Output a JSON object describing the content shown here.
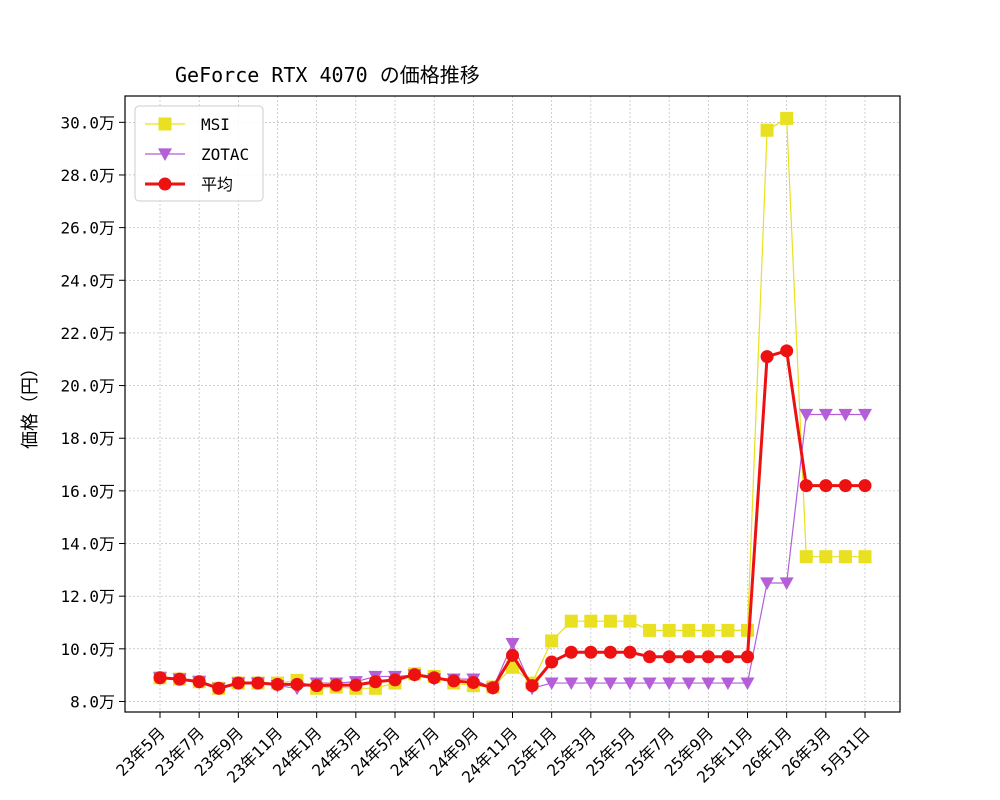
{
  "chart_data": {
    "type": "line",
    "title": "GeForce RTX 4070 の価格推移",
    "xlabel": "",
    "ylabel": "価格（円）",
    "ylim": [
      7.6,
      31.0
    ],
    "y_unit_suffix": "万",
    "y_ticks": [
      8,
      10,
      12,
      14,
      16,
      18,
      20,
      22,
      24,
      26,
      28,
      30
    ],
    "x_tick_labels": [
      {
        "index": 0,
        "label": "23年5月"
      },
      {
        "index": 2,
        "label": "23年7月"
      },
      {
        "index": 4,
        "label": "23年9月"
      },
      {
        "index": 6,
        "label": "23年11月"
      },
      {
        "index": 8,
        "label": "24年1月"
      },
      {
        "index": 10,
        "label": "24年3月"
      },
      {
        "index": 12,
        "label": "24年5月"
      },
      {
        "index": 14,
        "label": "24年7月"
      },
      {
        "index": 16,
        "label": "24年9月"
      },
      {
        "index": 18,
        "label": "24年11月"
      },
      {
        "index": 20,
        "label": "25年1月"
      },
      {
        "index": 22,
        "label": "25年3月"
      },
      {
        "index": 24,
        "label": "25年5月"
      },
      {
        "index": 26,
        "label": "25年7月"
      },
      {
        "index": 28,
        "label": "25年9月"
      },
      {
        "index": 30,
        "label": "25年11月"
      },
      {
        "index": 32,
        "label": "26年1月"
      },
      {
        "index": 34,
        "label": "26年3月"
      },
      {
        "index": 36,
        "label": "5月31日"
      }
    ],
    "grid": true,
    "legend_position": "top-left",
    "series": [
      {
        "name": "MSI",
        "color": "#e8e020",
        "marker": "square",
        "line_width": 1.2,
        "values": [
          8.9,
          8.85,
          8.75,
          8.5,
          8.7,
          8.7,
          8.7,
          8.8,
          8.5,
          8.55,
          8.5,
          8.5,
          8.7,
          9.05,
          8.95,
          8.7,
          8.6,
          8.55,
          9.3,
          8.7,
          10.3,
          11.05,
          11.05,
          11.05,
          11.05,
          10.7,
          10.7,
          10.7,
          10.7,
          10.7,
          10.7,
          29.7,
          30.15,
          13.5,
          13.5,
          13.5,
          13.5
        ]
      },
      {
        "name": "ZOTAC",
        "color": "#b45fd8",
        "marker": "triangle-down",
        "line_width": 1.2,
        "values": [
          8.9,
          8.85,
          8.75,
          8.5,
          8.7,
          8.7,
          8.6,
          8.5,
          8.7,
          8.7,
          8.75,
          8.95,
          8.95,
          9.0,
          8.85,
          8.85,
          8.85,
          8.5,
          10.2,
          8.5,
          8.7,
          8.7,
          8.7,
          8.7,
          8.7,
          8.7,
          8.7,
          8.7,
          8.7,
          8.7,
          8.7,
          12.5,
          12.5,
          18.9,
          18.9,
          18.9,
          18.9
        ]
      },
      {
        "name": "平均",
        "color": "#ee1111",
        "marker": "circle",
        "line_width": 3,
        "values": [
          8.9,
          8.85,
          8.75,
          8.5,
          8.7,
          8.7,
          8.65,
          8.65,
          8.6,
          8.62,
          8.62,
          8.75,
          8.82,
          9.02,
          8.9,
          8.78,
          8.72,
          8.52,
          9.75,
          8.6,
          9.5,
          9.87,
          9.87,
          9.87,
          9.87,
          9.7,
          9.7,
          9.7,
          9.7,
          9.7,
          9.7,
          21.1,
          21.32,
          16.2,
          16.2,
          16.2,
          16.2
        ]
      }
    ]
  }
}
